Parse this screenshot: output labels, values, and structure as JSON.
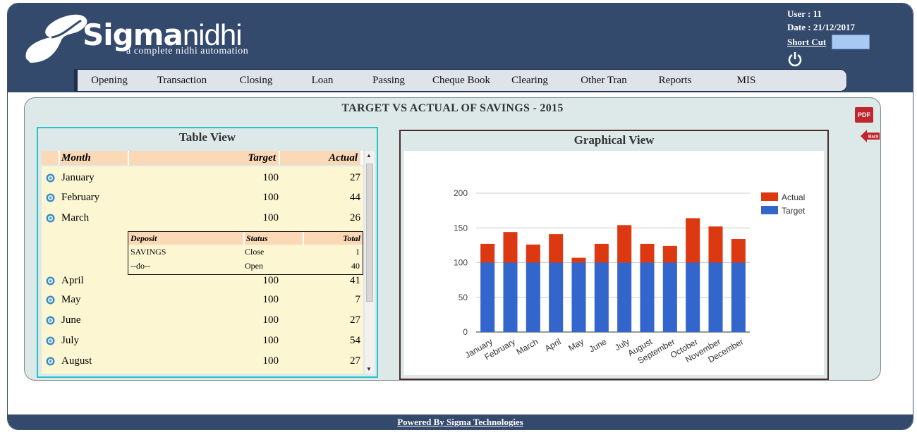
{
  "brand": {
    "name_bold": "Sigma",
    "name_light": "nidhi",
    "tagline": "a complete nidhi automation"
  },
  "user": {
    "user_label": "User : 11",
    "date_label": "Date : 21/12/2017",
    "shortcut_label": "Short Cut",
    "shortcut_value": ""
  },
  "menu": [
    "Opening",
    "Transaction",
    "Closing",
    "Loan",
    "Passing",
    "Cheque Book",
    "Clearing",
    "Other Tran",
    "Reports",
    "MIS"
  ],
  "panel": {
    "title": "TARGET VS ACTUAL OF SAVINGS - 2015",
    "pdf_label": "PDF",
    "back_label": "Back"
  },
  "table_view": {
    "title": "Table View",
    "headers": [
      "Month",
      "Target",
      "Actual"
    ],
    "rows": [
      {
        "month": "January",
        "target": "100",
        "actual": "27"
      },
      {
        "month": "February",
        "target": "100",
        "actual": "44"
      },
      {
        "month": "March",
        "target": "100",
        "actual": "26"
      },
      {
        "month": "April",
        "target": "100",
        "actual": "41"
      },
      {
        "month": "May",
        "target": "100",
        "actual": "7"
      },
      {
        "month": "June",
        "target": "100",
        "actual": "27"
      },
      {
        "month": "July",
        "target": "100",
        "actual": "54"
      },
      {
        "month": "August",
        "target": "100",
        "actual": "27"
      }
    ],
    "sub_table": {
      "headers": [
        "Deposit",
        "Status",
        "Total"
      ],
      "rows": [
        {
          "deposit": "SAVINGS",
          "status": "Close",
          "total": "1"
        },
        {
          "deposit": "--do--",
          "status": "Open",
          "total": "40"
        }
      ]
    }
  },
  "graph_view": {
    "title": "Graphical View"
  },
  "chart_data": {
    "type": "bar",
    "stacked": true,
    "categories": [
      "January",
      "February",
      "March",
      "April",
      "May",
      "June",
      "July",
      "August",
      "September",
      "October",
      "November",
      "December"
    ],
    "series": [
      {
        "name": "Target",
        "color": "#3366cc",
        "values": [
          100,
          100,
          100,
          100,
          100,
          100,
          100,
          100,
          100,
          100,
          100,
          100
        ]
      },
      {
        "name": "Actual",
        "color": "#dc3912",
        "values": [
          27,
          44,
          26,
          41,
          7,
          27,
          54,
          27,
          24,
          64,
          52,
          34
        ]
      }
    ],
    "ylim": [
      0,
      200
    ],
    "yticks": [
      0,
      50,
      100,
      150,
      200
    ],
    "legend": "right",
    "grid": true
  },
  "footer": {
    "text": "Powered By Sigma Technologies"
  }
}
